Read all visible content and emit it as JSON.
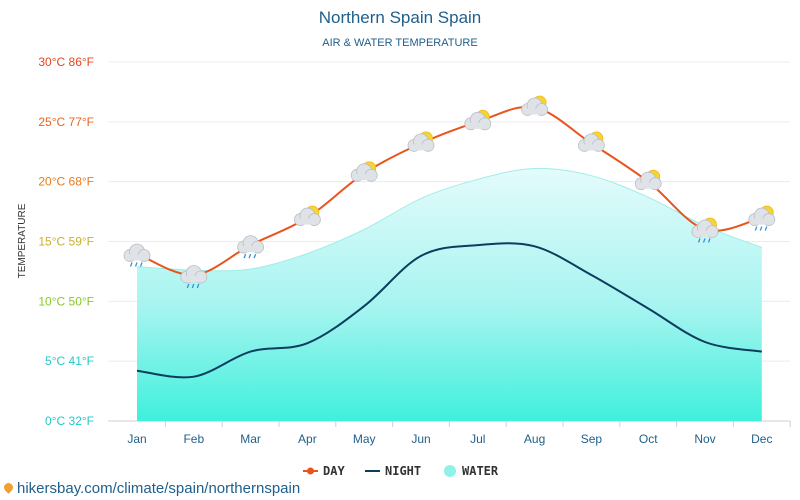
{
  "chart_data": {
    "type": "line",
    "title": "Northern Spain Spain",
    "subtitle": "AIR & WATER TEMPERATURE",
    "ylabel": "TEMPERATURE",
    "categories": [
      "Jan",
      "Feb",
      "Mar",
      "Apr",
      "May",
      "Jun",
      "Jul",
      "Aug",
      "Sep",
      "Oct",
      "Nov",
      "Dec"
    ],
    "ylim": [
      0,
      30
    ],
    "yticks": [
      {
        "value": 0,
        "label": "0°C 32°F",
        "color": "#25c7c7"
      },
      {
        "value": 5,
        "label": "5°C 41°F",
        "color": "#25c7c7"
      },
      {
        "value": 10,
        "label": "10°C 50°F",
        "color": "#86c926"
      },
      {
        "value": 15,
        "label": "15°C 59°F",
        "color": "#c9b12a"
      },
      {
        "value": 20,
        "label": "20°C 68°F",
        "color": "#e87a1e"
      },
      {
        "value": 25,
        "label": "25°C 77°F",
        "color": "#e8641e"
      },
      {
        "value": 30,
        "label": "30°C 86°F",
        "color": "#e8461e"
      }
    ],
    "series": [
      {
        "name": "DAY",
        "color": "#e8541e",
        "values": [
          14.0,
          12.2,
          14.7,
          17.0,
          20.7,
          23.2,
          25.0,
          26.2,
          23.2,
          20.0,
          16.0,
          17.0
        ]
      },
      {
        "name": "NIGHT",
        "color": "#0c3d5e",
        "values": [
          4.2,
          3.7,
          5.8,
          6.5,
          9.6,
          13.8,
          14.7,
          14.6,
          12.2,
          9.4,
          6.6,
          5.8
        ]
      },
      {
        "name": "WATER",
        "color": "#5ff2e6",
        "values": [
          12.9,
          12.6,
          12.7,
          14.0,
          16.0,
          18.6,
          20.2,
          21.1,
          20.5,
          18.7,
          16.3,
          14.5
        ]
      }
    ],
    "weather_icons": [
      "rain-cloud-icon",
      "rain-cloud-icon",
      "rain-cloud-icon",
      "partly-sunny-icon",
      "partly-sunny-icon",
      "partly-sunny-icon",
      "partly-sunny-icon",
      "partly-sunny-icon",
      "partly-sunny-icon",
      "partly-sunny-icon",
      "sun-rain-cloud-icon",
      "sun-rain-cloud-icon"
    ],
    "legend_placement": "bottom-center",
    "grid": true
  },
  "source": "hikersbay.com/climate/spain/northernspain"
}
